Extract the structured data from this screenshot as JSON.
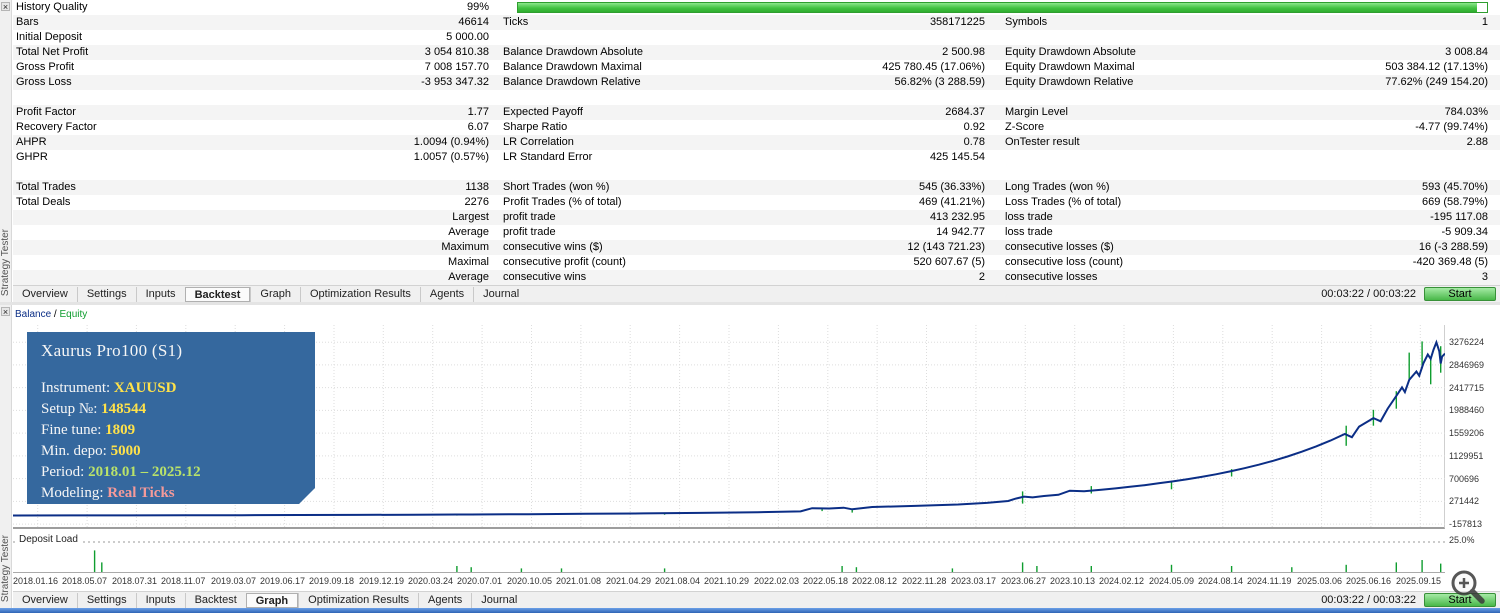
{
  "panel": {
    "title": "Strategy Tester",
    "close_glyph": "×"
  },
  "report": {
    "history": {
      "label": "History Quality",
      "value": "99%",
      "bar_color": "#43c243"
    },
    "rows": [
      {
        "cells": [
          [
            "Bars",
            "46614"
          ],
          [
            "Ticks",
            "358171225"
          ],
          [
            "Symbols",
            "1"
          ]
        ]
      },
      {
        "cells": [
          [
            "Initial Deposit",
            "5 000.00"
          ],
          [
            "",
            ""
          ],
          [
            "",
            ""
          ]
        ]
      },
      {
        "cells": [
          [
            "Total Net Profit",
            "3 054 810.38"
          ],
          [
            "Balance Drawdown Absolute",
            "2 500.98"
          ],
          [
            "Equity Drawdown Absolute",
            "3 008.84"
          ]
        ]
      },
      {
        "cells": [
          [
            "Gross Profit",
            "7 008 157.70"
          ],
          [
            "Balance Drawdown Maximal",
            "425 780.45 (17.06%)"
          ],
          [
            "Equity Drawdown Maximal",
            "503 384.12 (17.13%)"
          ]
        ]
      },
      {
        "cells": [
          [
            "Gross Loss",
            "-3 953 347.32"
          ],
          [
            "Balance Drawdown Relative",
            "56.82% (3 288.59)"
          ],
          [
            "Equity Drawdown Relative",
            "77.62% (249 154.20)"
          ]
        ]
      },
      {
        "spacer": true
      },
      {
        "cells": [
          [
            "Profit Factor",
            "1.77"
          ],
          [
            "Expected Payoff",
            "2684.37"
          ],
          [
            "Margin Level",
            "784.03%"
          ]
        ]
      },
      {
        "cells": [
          [
            "Recovery Factor",
            "6.07"
          ],
          [
            "Sharpe Ratio",
            "0.92"
          ],
          [
            "Z-Score",
            "-4.77 (99.74%)"
          ]
        ]
      },
      {
        "cells": [
          [
            "AHPR",
            "1.0094 (0.94%)"
          ],
          [
            "LR Correlation",
            "0.78"
          ],
          [
            "OnTester result",
            "2.88"
          ]
        ]
      },
      {
        "cells": [
          [
            "GHPR",
            "1.0057 (0.57%)"
          ],
          [
            "LR Standard Error",
            "425 145.54"
          ],
          [
            "",
            ""
          ]
        ]
      },
      {
        "spacer": true
      },
      {
        "cells": [
          [
            "Total Trades",
            "1138"
          ],
          [
            "Short Trades (won %)",
            "545 (36.33%)"
          ],
          [
            "Long Trades (won %)",
            "593 (45.70%)"
          ]
        ]
      },
      {
        "cells": [
          [
            "Total Deals",
            "2276"
          ],
          [
            "Profit Trades (% of total)",
            "469 (41.21%)"
          ],
          [
            "Loss Trades (% of total)",
            "669 (58.79%)"
          ]
        ]
      },
      {
        "cells": [
          [
            "",
            "Largest"
          ],
          [
            "profit trade",
            "413 232.95"
          ],
          [
            "loss trade",
            "-195 117.08"
          ]
        ]
      },
      {
        "cells": [
          [
            "",
            "Average"
          ],
          [
            "profit trade",
            "14 942.77"
          ],
          [
            "loss trade",
            "-5 909.34"
          ]
        ]
      },
      {
        "cells": [
          [
            "",
            "Maximum"
          ],
          [
            "consecutive wins ($)",
            "12 (143 721.23)"
          ],
          [
            "consecutive losses ($)",
            "16 (-3 288.59)"
          ]
        ]
      },
      {
        "cells": [
          [
            "",
            "Maximal"
          ],
          [
            "consecutive profit (count)",
            "520 607.67 (5)"
          ],
          [
            "consecutive loss (count)",
            "-420 369.48 (5)"
          ]
        ]
      },
      {
        "cells": [
          [
            "",
            "Average"
          ],
          [
            "consecutive wins",
            "2"
          ],
          [
            "consecutive losses",
            "3"
          ]
        ]
      }
    ]
  },
  "tabs": {
    "items": [
      "Overview",
      "Settings",
      "Inputs",
      "Backtest",
      "Graph",
      "Optimization Results",
      "Agents",
      "Journal"
    ],
    "top_selected": "Backtest",
    "bottom_selected": "Graph",
    "time": "00:03:22 / 00:03:22",
    "start_label": "Start"
  },
  "graph": {
    "legend": {
      "balance": "Balance",
      "sep": " / ",
      "equity": "Equity"
    },
    "infobox": {
      "title": "Xaurus Pro100 (S1)",
      "lines": [
        {
          "label": "Instrument: ",
          "value": "XAUUSD",
          "color": "#ffe24a"
        },
        {
          "label": "Setup №: ",
          "value": "148544",
          "color": "#ffe24a"
        },
        {
          "label": "Fine tune: ",
          "value": "1809",
          "color": "#ffe24a"
        },
        {
          "label": "Min. depo: ",
          "value": "5000",
          "color": "#ffe24a"
        },
        {
          "label": "Period: ",
          "value": "2018.01 – 2025.12",
          "color": "#b9e26a"
        },
        {
          "label": "Modeling: ",
          "value": "Real Ticks",
          "color": "#f59a9a"
        }
      ]
    },
    "deposit_load": {
      "label": "Deposit Load",
      "scale": "25.0%"
    }
  },
  "chart_data": {
    "type": "line",
    "title": "Balance / Equity",
    "legend_position": "top-left",
    "grid": true,
    "y_ticks": [
      3276224,
      2846969,
      2417715,
      1988460,
      1559206,
      1129951,
      700696,
      271442,
      -157813
    ],
    "ylim": [
      -250000,
      3600000
    ],
    "x_labels": [
      "2018.01.16",
      "2018.05.07",
      "2018.07.31",
      "2018.11.07",
      "2019.03.07",
      "2019.06.17",
      "2019.09.18",
      "2019.12.19",
      "2020.03.24",
      "2020.07.01",
      "2020.10.05",
      "2021.01.08",
      "2021.04.29",
      "2021.08.04",
      "2021.10.29",
      "2022.02.03",
      "2022.05.18",
      "2022.08.12",
      "2022.11.28",
      "2023.03.17",
      "2023.06.27",
      "2023.10.13",
      "2024.02.12",
      "2024.05.09",
      "2024.08.14",
      "2024.11.19",
      "2025.03.06",
      "2025.06.16",
      "2025.09.15"
    ],
    "series": [
      {
        "name": "Balance",
        "color": "#0b2e86",
        "points": [
          [
            0.0,
            5000
          ],
          [
            0.04,
            6000
          ],
          [
            0.08,
            7500
          ],
          [
            0.12,
            9000
          ],
          [
            0.16,
            11000
          ],
          [
            0.2,
            13500
          ],
          [
            0.24,
            16500
          ],
          [
            0.28,
            20000
          ],
          [
            0.31,
            23000
          ],
          [
            0.32,
            24500
          ],
          [
            0.36,
            29500
          ],
          [
            0.4,
            36000
          ],
          [
            0.44,
            44000
          ],
          [
            0.48,
            54000
          ],
          [
            0.52,
            67000
          ],
          [
            0.55,
            82000
          ],
          [
            0.558,
            142000
          ],
          [
            0.57,
            136000
          ],
          [
            0.58,
            152000
          ],
          [
            0.586,
            121000
          ],
          [
            0.6,
            166000
          ],
          [
            0.63,
            186000
          ],
          [
            0.66,
            212000
          ],
          [
            0.68,
            242000
          ],
          [
            0.695,
            278000
          ],
          [
            0.7,
            322000
          ],
          [
            0.706,
            362000
          ],
          [
            0.712,
            346000
          ],
          [
            0.72,
            372000
          ],
          [
            0.73,
            396000
          ],
          [
            0.738,
            472000
          ],
          [
            0.748,
            462000
          ],
          [
            0.76,
            492000
          ],
          [
            0.77,
            517000
          ],
          [
            0.78,
            547000
          ],
          [
            0.79,
            577000
          ],
          [
            0.8,
            612000
          ],
          [
            0.81,
            648000
          ],
          [
            0.82,
            688000
          ],
          [
            0.83,
            733000
          ],
          [
            0.84,
            783000
          ],
          [
            0.85,
            838000
          ],
          [
            0.86,
            898000
          ],
          [
            0.87,
            963000
          ],
          [
            0.88,
            1038000
          ],
          [
            0.89,
            1118000
          ],
          [
            0.9,
            1208000
          ],
          [
            0.91,
            1308000
          ],
          [
            0.92,
            1418000
          ],
          [
            0.93,
            1543000
          ],
          [
            0.935,
            1483000
          ],
          [
            0.94,
            1683000
          ],
          [
            0.95,
            1843000
          ],
          [
            0.955,
            1783000
          ],
          [
            0.96,
            2023000
          ],
          [
            0.965,
            2223000
          ],
          [
            0.97,
            2423000
          ],
          [
            0.972,
            2333000
          ],
          [
            0.975,
            2563000
          ],
          [
            0.98,
            2723000
          ],
          [
            0.982,
            2643000
          ],
          [
            0.985,
            2883000
          ],
          [
            0.988,
            3043000
          ],
          [
            0.99,
            2963000
          ],
          [
            0.992,
            3133000
          ],
          [
            0.994,
            3273000
          ],
          [
            0.996,
            3103000
          ],
          [
            0.997,
            2873000
          ],
          [
            0.998,
            3003000
          ],
          [
            1.0,
            3059810
          ]
        ]
      },
      {
        "name": "Equity",
        "color": "#0f9d2f",
        "spikes": [
          [
            0.31,
            22000,
            2000
          ],
          [
            0.32,
            24000,
            5000
          ],
          [
            0.455,
            46000,
            20000
          ],
          [
            0.565,
            150000,
            88000
          ],
          [
            0.586,
            121000,
            60000
          ],
          [
            0.705,
            460000,
            230000
          ],
          [
            0.753,
            560000,
            420000
          ],
          [
            0.809,
            660000,
            500000
          ],
          [
            0.851,
            880000,
            740000
          ],
          [
            0.931,
            1700000,
            1320000
          ],
          [
            0.95,
            2000000,
            1700000
          ],
          [
            0.966,
            2350000,
            2020000
          ],
          [
            0.975,
            2560000,
            3080000
          ],
          [
            0.984,
            2780000,
            3290000
          ],
          [
            0.99,
            2960000,
            2480000
          ],
          [
            0.997,
            3200000,
            2700000
          ]
        ]
      }
    ],
    "subchart": {
      "name": "Deposit Load",
      "max_label": "25.0%",
      "scale_max_percent": 25,
      "bar_color": "#0f9d2f",
      "bars": [
        [
          0.057,
          18
        ],
        [
          0.062,
          8
        ],
        [
          0.31,
          5
        ],
        [
          0.32,
          4
        ],
        [
          0.355,
          3
        ],
        [
          0.383,
          3
        ],
        [
          0.455,
          3
        ],
        [
          0.579,
          5
        ],
        [
          0.589,
          4
        ],
        [
          0.656,
          3
        ],
        [
          0.705,
          8
        ],
        [
          0.715,
          5
        ],
        [
          0.753,
          5
        ],
        [
          0.809,
          6
        ],
        [
          0.851,
          5
        ],
        [
          0.893,
          4
        ],
        [
          0.931,
          6
        ],
        [
          0.966,
          8
        ],
        [
          0.984,
          10
        ],
        [
          0.997,
          7
        ]
      ]
    }
  }
}
